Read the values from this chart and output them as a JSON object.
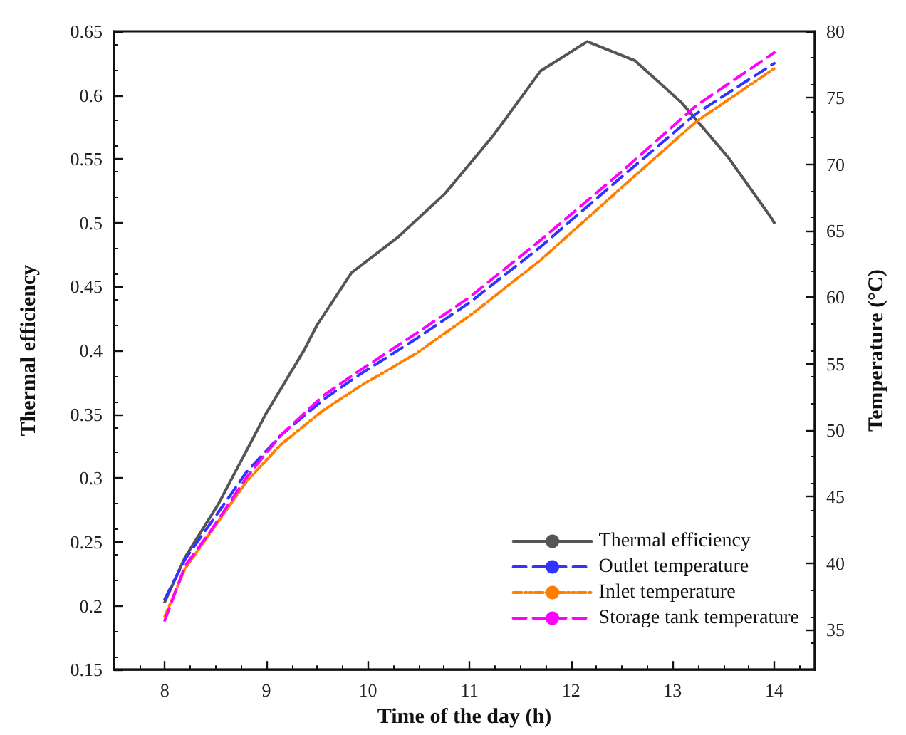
{
  "chart_data": {
    "type": "line",
    "xlabel": "Time of the day (h)",
    "ylabel": "Thermal efficiency",
    "y2label": "Temperature (°C)",
    "xlim": [
      7.5,
      14.4
    ],
    "xticks": [
      8,
      9,
      10,
      11,
      12,
      13,
      14
    ],
    "ylim": [
      0.15,
      0.65
    ],
    "yticks": [
      0.15,
      0.2,
      0.25,
      0.3,
      0.35,
      0.4,
      0.45,
      0.5,
      0.55,
      0.6,
      0.65
    ],
    "y2lim": [
      32,
      80
    ],
    "y2ticks": [
      35,
      40,
      45,
      50,
      55,
      60,
      65,
      70,
      75,
      80
    ],
    "grid": false,
    "legend": "bottom right",
    "marker": "none",
    "series": [
      {
        "name": "Thermal efficiency",
        "color": "#555555",
        "line_style": "solid",
        "x": [
          8,
          8.2,
          8.53,
          9,
          9.37,
          9.5,
          9.84,
          10.3,
          10.76,
          11.24,
          11.7,
          12.16,
          12.63,
          13.09,
          13.55,
          13.97,
          14
        ],
        "values": [
          0.203,
          0.238,
          0.28,
          0.351,
          0.4,
          0.42,
          0.461,
          0.489,
          0.523,
          0.569,
          0.619,
          0.642,
          0.627,
          0.594,
          0.551,
          0.504,
          0.5
        ]
      },
      {
        "name": "Outlet temperature",
        "color": "#3333ff",
        "line_style": "dashed",
        "axis": "y2",
        "x": [
          8,
          8.2,
          8.45,
          8.81,
          9.14,
          9.56,
          9.92,
          10.48,
          11,
          11.7,
          12.49,
          13.23,
          14
        ],
        "values": [
          37.3,
          40.3,
          43.0,
          46.9,
          49.6,
          52.3,
          54.2,
          56.9,
          59.6,
          63.8,
          69.0,
          73.8,
          77.6
        ]
      },
      {
        "name": "Inlet temperature",
        "color": "#ff8000",
        "line_style": "dotted",
        "axis": "y2",
        "x": [
          8,
          8.2,
          8.45,
          8.81,
          9.14,
          9.56,
          9.92,
          10.48,
          11,
          11.7,
          12.49,
          13.23,
          14
        ],
        "values": [
          36.0,
          39.6,
          42.3,
          46.2,
          48.9,
          51.5,
          53.3,
          55.8,
          58.6,
          62.8,
          68.2,
          73.2,
          77.2
        ]
      },
      {
        "name": "Storage tank temperature",
        "color": "#ff00ff",
        "line_style": "dashed",
        "axis": "y2",
        "x": [
          8,
          8.2,
          8.45,
          8.81,
          9.14,
          9.56,
          9.92,
          10.48,
          11,
          11.7,
          12.49,
          13.23,
          14
        ],
        "values": [
          35.7,
          39.8,
          42.4,
          46.5,
          49.6,
          52.6,
          54.5,
          57.3,
          60.0,
          64.3,
          69.4,
          74.4,
          78.4
        ]
      }
    ]
  }
}
